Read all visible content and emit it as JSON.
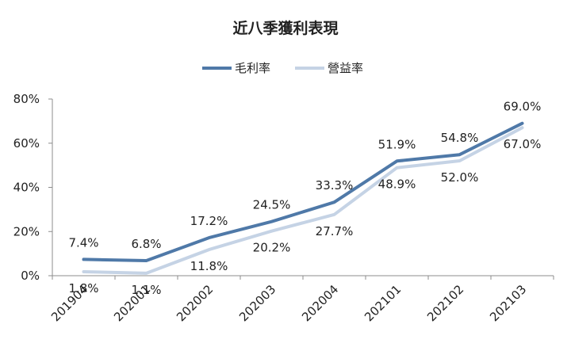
{
  "chart_data": {
    "type": "line",
    "title": "近八季獲利表現",
    "categories": [
      "201904",
      "202001",
      "202002",
      "202003",
      "202004",
      "202101",
      "202102",
      "202103"
    ],
    "series": [
      {
        "name": "毛利率",
        "color": "#4F79A8",
        "values": [
          7.4,
          6.8,
          17.2,
          24.5,
          33.3,
          51.9,
          54.8,
          69.0
        ],
        "labels": [
          "7.4%",
          "6.8%",
          "17.2%",
          "24.5%",
          "33.3%",
          "51.9%",
          "54.8%",
          "69.0%"
        ]
      },
      {
        "name": "營益率",
        "color": "#C5D3E5",
        "values": [
          1.8,
          1.1,
          11.8,
          20.2,
          27.7,
          48.9,
          52.0,
          67.0
        ],
        "labels": [
          "1.8%",
          "1.1%",
          "11.8%",
          "20.2%",
          "27.7%",
          "48.9%",
          "52.0%",
          "67.0%"
        ]
      }
    ],
    "yticks": [
      "0%",
      "20%",
      "40%",
      "60%",
      "80%"
    ],
    "ylim": [
      0,
      80
    ],
    "grid": false,
    "legend_position": "top"
  }
}
